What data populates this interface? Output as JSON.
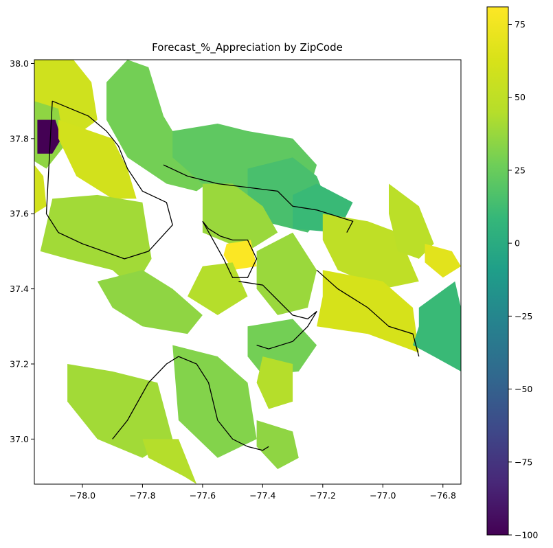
{
  "figure": {
    "title": "Forecast_%_Appreciation by ZipCode"
  },
  "chart_data": {
    "type": "choropleth",
    "title": "Forecast_%_Appreciation by ZipCode",
    "xlabel": "",
    "ylabel": "",
    "xlim": [
      -78.16,
      -76.74
    ],
    "ylim": [
      36.88,
      38.01
    ],
    "x_ticks": [
      -78.0,
      -77.8,
      -77.6,
      -77.4,
      -77.2,
      -77.0,
      -76.8
    ],
    "x_tick_labels": [
      "−78.0",
      "−77.8",
      "−77.6",
      "−77.4",
      "−77.2",
      "−77.0",
      "−76.8"
    ],
    "y_ticks": [
      37.0,
      37.2,
      37.4,
      37.6,
      37.8,
      38.0
    ],
    "y_tick_labels": [
      "37.0",
      "37.2",
      "37.4",
      "37.6",
      "37.8",
      "38.0"
    ],
    "colormap": "viridis",
    "color_range": [
      -100,
      81
    ],
    "colorbar_ticks": [
      75,
      50,
      25,
      0,
      -25,
      -50,
      -75,
      -100
    ],
    "colorbar_tick_labels": [
      "75",
      "50",
      "25",
      "0",
      "−25",
      "−50",
      "−75",
      "−100"
    ],
    "grid": false,
    "regions": [
      {
        "lon": [
          -78.16,
          -78.03,
          -77.97,
          -77.95,
          -78.0,
          -78.1,
          -78.16
        ],
        "lat": [
          38.01,
          38.01,
          37.95,
          37.85,
          37.82,
          37.84,
          37.9
        ],
        "value": 58
      },
      {
        "lon": [
          -78.16,
          -78.08,
          -78.06,
          -78.12,
          -78.16
        ],
        "lat": [
          37.9,
          37.88,
          37.78,
          37.72,
          37.74
        ],
        "value": 35
      },
      {
        "lon": [
          -78.15,
          -78.09,
          -78.07,
          -78.1,
          -78.15
        ],
        "lat": [
          37.85,
          37.85,
          37.8,
          37.76,
          37.76
        ],
        "value": -100
      },
      {
        "lon": [
          -78.16,
          -78.13,
          -78.12,
          -78.16
        ],
        "lat": [
          37.73,
          37.7,
          37.62,
          37.6
        ],
        "value": 60
      },
      {
        "lon": [
          -78.08,
          -77.9,
          -77.85,
          -77.82,
          -77.9,
          -78.02,
          -78.08
        ],
        "lat": [
          37.85,
          37.8,
          37.72,
          37.64,
          37.64,
          37.7,
          37.8
        ],
        "value": 60
      },
      {
        "lon": [
          -78.1,
          -77.95,
          -77.8,
          -77.77,
          -77.83,
          -77.9,
          -78.05,
          -78.14
        ],
        "lat": [
          37.64,
          37.65,
          37.63,
          37.48,
          37.4,
          37.45,
          37.48,
          37.5
        ],
        "value": 40
      },
      {
        "lon": [
          -77.92,
          -77.85,
          -77.78,
          -77.73,
          -77.7,
          -77.6,
          -77.55,
          -77.62,
          -77.72,
          -77.85,
          -77.92
        ],
        "lat": [
          37.95,
          38.01,
          37.99,
          37.86,
          37.82,
          37.8,
          37.7,
          37.66,
          37.68,
          37.75,
          37.85
        ],
        "value": 28
      },
      {
        "lon": [
          -77.7,
          -77.55,
          -77.45,
          -77.3,
          -77.22,
          -77.25,
          -77.35,
          -77.5,
          -77.6,
          -77.7
        ],
        "lat": [
          37.82,
          37.84,
          37.82,
          37.8,
          37.73,
          37.65,
          37.62,
          37.65,
          37.68,
          37.75
        ],
        "value": 22
      },
      {
        "lon": [
          -77.45,
          -77.3,
          -77.22,
          -77.18,
          -77.25,
          -77.4,
          -77.45
        ],
        "lat": [
          37.72,
          37.75,
          37.7,
          37.62,
          37.55,
          37.58,
          37.65
        ],
        "value": 15
      },
      {
        "lon": [
          -77.3,
          -77.22,
          -77.1,
          -77.15,
          -77.3
        ],
        "lat": [
          37.65,
          37.68,
          37.63,
          37.55,
          37.56
        ],
        "value": 10
      },
      {
        "lon": [
          -77.6,
          -77.5,
          -77.4,
          -77.35,
          -77.45,
          -77.6
        ],
        "lat": [
          37.68,
          37.68,
          37.62,
          37.55,
          37.5,
          37.55
        ],
        "value": 38
      },
      {
        "lon": [
          -77.52,
          -77.44,
          -77.42,
          -77.5,
          -77.53
        ],
        "lat": [
          37.52,
          37.53,
          37.46,
          37.45,
          37.49
        ],
        "value": 80
      },
      {
        "lon": [
          -77.6,
          -77.5,
          -77.45,
          -77.55,
          -77.65
        ],
        "lat": [
          37.46,
          37.47,
          37.38,
          37.33,
          37.38
        ],
        "value": 45
      },
      {
        "lon": [
          -77.42,
          -77.3,
          -77.22,
          -77.25,
          -77.35,
          -77.42
        ],
        "lat": [
          37.5,
          37.55,
          37.45,
          37.35,
          37.33,
          37.4
        ],
        "value": 38
      },
      {
        "lon": [
          -77.2,
          -77.05,
          -76.95,
          -76.88,
          -77.0,
          -77.15,
          -77.2
        ],
        "lat": [
          37.6,
          37.58,
          37.55,
          37.42,
          37.4,
          37.45,
          37.53
        ],
        "value": 50
      },
      {
        "lon": [
          -76.98,
          -76.88,
          -76.83,
          -76.88,
          -76.95,
          -76.98
        ],
        "lat": [
          37.68,
          37.62,
          37.52,
          37.48,
          37.5,
          37.6
        ],
        "value": 48
      },
      {
        "lon": [
          -76.86,
          -76.77,
          -76.74,
          -76.8,
          -76.86
        ],
        "lat": [
          37.52,
          37.5,
          37.46,
          37.43,
          37.47
        ],
        "value": 68
      },
      {
        "lon": [
          -77.2,
          -77.0,
          -76.9,
          -76.88,
          -77.05,
          -77.22,
          -77.2
        ],
        "lat": [
          37.45,
          37.42,
          37.35,
          37.23,
          37.28,
          37.3,
          37.38
        ],
        "value": 62
      },
      {
        "lon": [
          -76.88,
          -76.76,
          -76.74,
          -76.74,
          -76.83,
          -76.9,
          -76.88
        ],
        "lat": [
          37.35,
          37.42,
          37.35,
          37.18,
          37.22,
          37.25,
          37.3
        ],
        "value": 10
      },
      {
        "lon": [
          -77.95,
          -77.8,
          -77.7,
          -77.6,
          -77.65,
          -77.8,
          -77.9
        ],
        "lat": [
          37.42,
          37.45,
          37.4,
          37.33,
          37.28,
          37.3,
          37.35
        ],
        "value": 35
      },
      {
        "lon": [
          -77.45,
          -77.3,
          -77.22,
          -77.28,
          -77.4,
          -77.45
        ],
        "lat": [
          37.3,
          37.32,
          37.25,
          37.18,
          37.17,
          37.22
        ],
        "value": 28
      },
      {
        "lon": [
          -78.05,
          -77.9,
          -77.75,
          -77.7,
          -77.8,
          -77.95,
          -78.05
        ],
        "lat": [
          37.2,
          37.18,
          37.15,
          37.0,
          36.95,
          37.0,
          37.1
        ],
        "value": 40
      },
      {
        "lon": [
          -77.7,
          -77.55,
          -77.45,
          -77.42,
          -77.55,
          -77.68
        ],
        "lat": [
          37.25,
          37.22,
          37.15,
          37.0,
          36.95,
          37.05
        ],
        "value": 32
      },
      {
        "lon": [
          -77.8,
          -77.68,
          -77.62,
          -77.66,
          -77.78
        ],
        "lat": [
          37.0,
          37.0,
          36.88,
          36.9,
          36.95
        ],
        "value": 45
      },
      {
        "lon": [
          -77.42,
          -77.3,
          -77.28,
          -77.35,
          -77.42
        ],
        "lat": [
          37.05,
          37.02,
          36.95,
          36.92,
          36.98
        ],
        "value": 35
      },
      {
        "lon": [
          -77.4,
          -77.3,
          -77.3,
          -77.38,
          -77.42
        ],
        "lat": [
          37.22,
          37.2,
          37.1,
          37.08,
          37.15
        ],
        "value": 45
      }
    ],
    "boundaries": [
      {
        "lon": [
          -78.1,
          -77.98,
          -77.92,
          -77.88,
          -77.85,
          -77.8,
          -77.72,
          -77.7,
          -77.78,
          -77.86,
          -77.93,
          -78.0,
          -78.08,
          -78.12,
          -78.1
        ],
        "lat": [
          37.9,
          37.86,
          37.82,
          37.78,
          37.72,
          37.66,
          37.63,
          37.57,
          37.5,
          37.48,
          37.5,
          37.52,
          37.55,
          37.6,
          37.9
        ]
      },
      {
        "lon": [
          -77.73,
          -77.65,
          -77.55,
          -77.45,
          -77.35,
          -77.3,
          -77.22,
          -77.1,
          -77.12
        ],
        "lat": [
          37.73,
          37.7,
          37.68,
          37.67,
          37.66,
          37.62,
          37.61,
          37.58,
          37.55
        ]
      },
      {
        "lon": [
          -77.6,
          -77.58,
          -77.54,
          -77.5,
          -77.45,
          -77.42,
          -77.45,
          -77.5,
          -77.53,
          -77.6
        ],
        "lat": [
          37.58,
          37.56,
          37.54,
          37.53,
          37.53,
          37.48,
          37.43,
          37.43,
          37.48,
          37.58
        ]
      },
      {
        "lon": [
          -77.48,
          -77.4,
          -77.35,
          -77.3,
          -77.25,
          -77.22,
          -77.25,
          -77.3,
          -77.38,
          -77.42
        ],
        "lat": [
          37.42,
          37.41,
          37.37,
          37.33,
          37.32,
          37.34,
          37.3,
          37.26,
          37.24,
          37.25
        ]
      },
      {
        "lon": [
          -77.22,
          -77.15,
          -77.05,
          -76.98,
          -76.9,
          -76.88
        ],
        "lat": [
          37.45,
          37.4,
          37.35,
          37.3,
          37.28,
          37.22
        ]
      },
      {
        "lon": [
          -77.9,
          -77.85,
          -77.78,
          -77.72,
          -77.68,
          -77.62,
          -77.58,
          -77.55,
          -77.5,
          -77.45,
          -77.4,
          -77.38
        ],
        "lat": [
          37.0,
          37.05,
          37.15,
          37.2,
          37.22,
          37.2,
          37.15,
          37.05,
          37.0,
          36.98,
          36.97,
          36.98
        ]
      }
    ]
  }
}
